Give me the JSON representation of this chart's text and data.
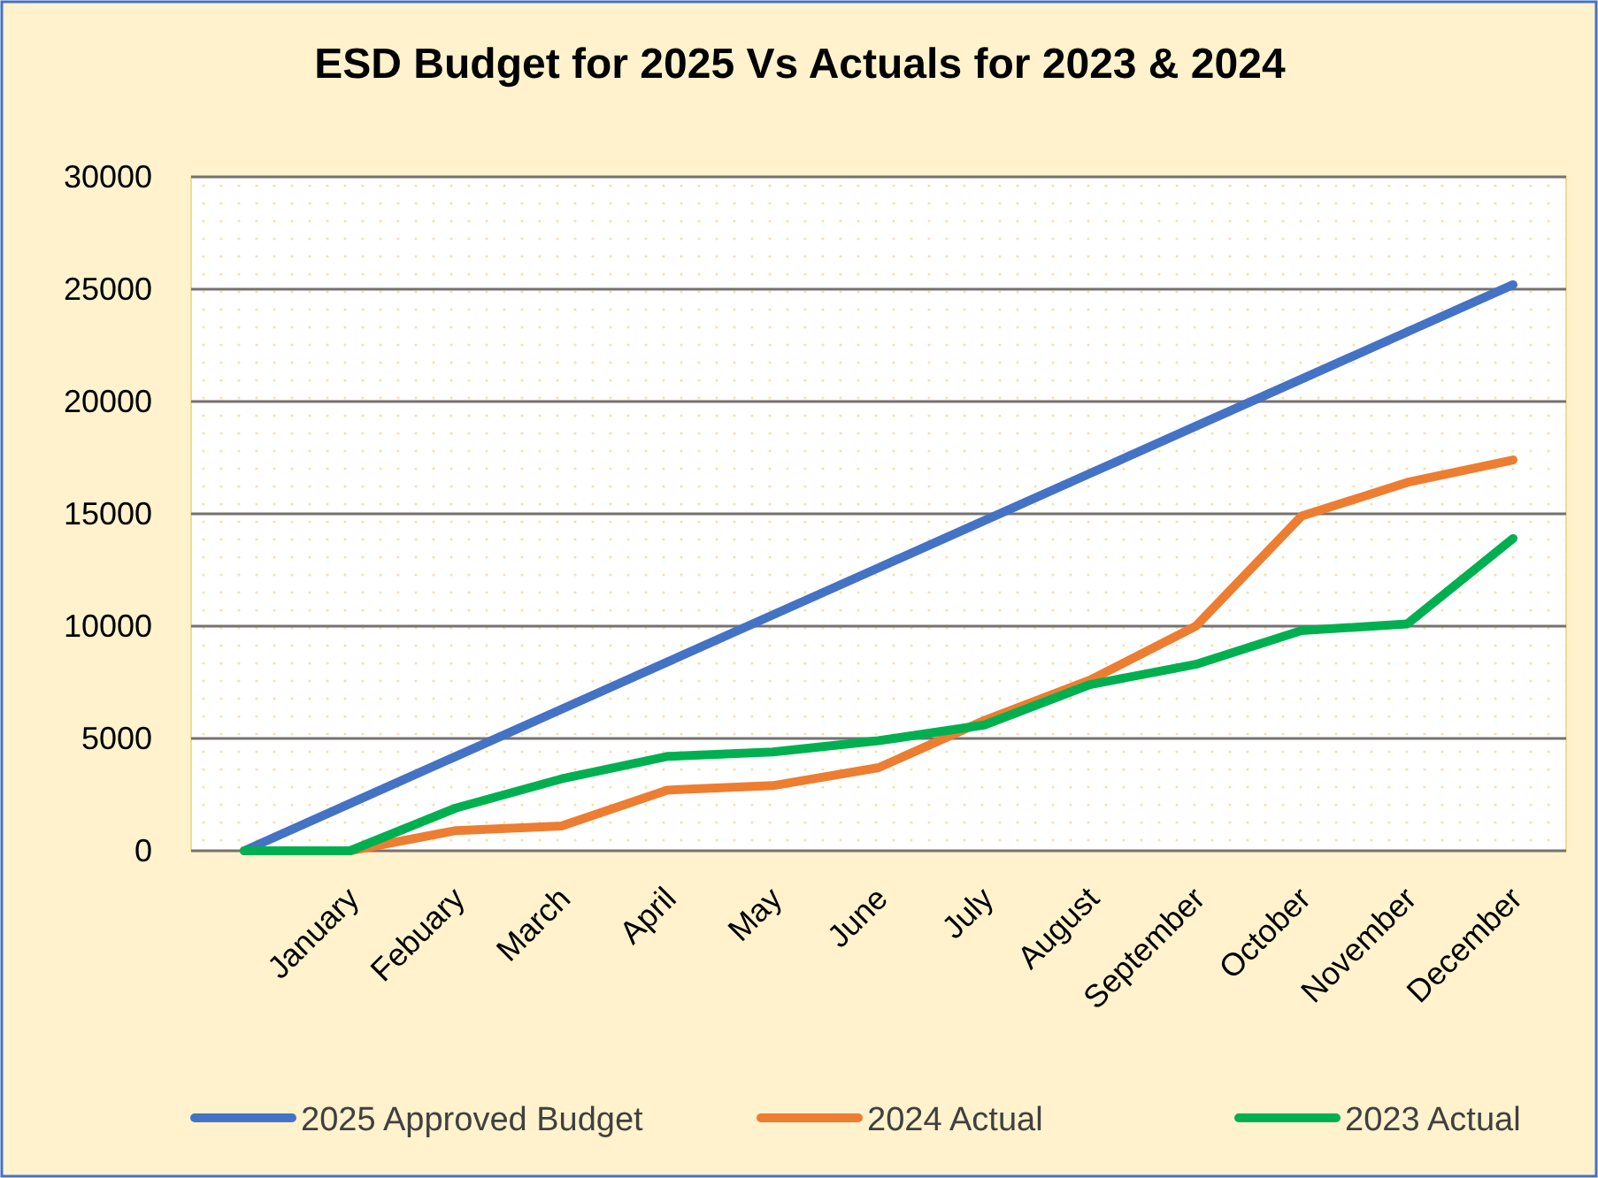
{
  "chart_data": {
    "type": "line",
    "title": "ESD Budget for 2025 Vs Actuals for 2023 & 2024",
    "categories": [
      null,
      "January",
      "Febuary",
      "March",
      "April",
      "May",
      "June",
      "July",
      "August",
      "September",
      "October",
      "November",
      "December"
    ],
    "series": [
      {
        "name": "2025 Approved Budget",
        "color": "#4472c4",
        "values": [
          0,
          2100,
          4200,
          6300,
          8400,
          10500,
          12600,
          14700,
          16800,
          18900,
          21000,
          23100,
          25200
        ]
      },
      {
        "name": "2024 Actual",
        "color": "#ed7d31",
        "values": [
          0,
          0,
          900,
          1100,
          2700,
          2900,
          3700,
          5800,
          7600,
          10000,
          14900,
          16400,
          17400
        ]
      },
      {
        "name": "2023 Actual",
        "color": "#00b050",
        "values": [
          0,
          0,
          1900,
          3200,
          4200,
          4400,
          4900,
          5600,
          7400,
          8300,
          9800,
          10100,
          13900
        ]
      }
    ],
    "ylim": [
      0,
      30000
    ],
    "yticks": [
      0,
      5000,
      10000,
      15000,
      20000,
      25000,
      30000
    ],
    "grid": "y",
    "legend": "bottom",
    "marker": "none",
    "line_style": "solid"
  }
}
